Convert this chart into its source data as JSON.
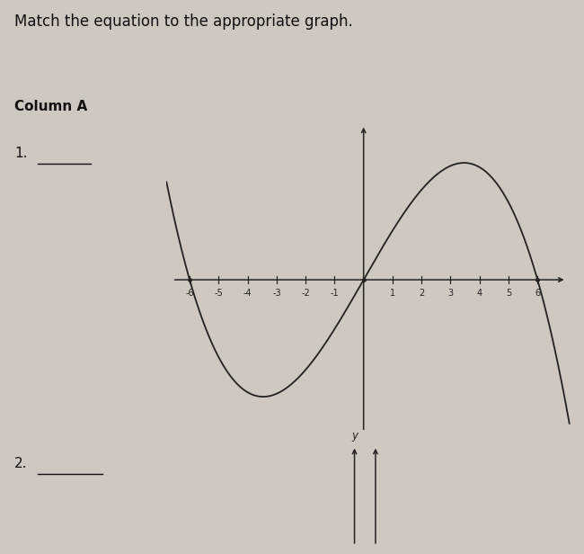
{
  "title": "Match the equation to the appropriate graph.",
  "column_label": "Column A",
  "item1_label": "1.",
  "item2_label": "2.",
  "bg_color": "#cdc9c0",
  "curve_color": "#222222",
  "axis_color": "#222222",
  "text_color": "#111111",
  "x_ticks_neg": [
    -6,
    -5,
    -4,
    -3,
    -2,
    -1
  ],
  "x_ticks_pos": [
    1,
    2,
    3,
    4,
    5,
    6
  ],
  "graph1_xlim": [
    -6.8,
    7.2
  ],
  "graph1_ylim": [
    -5.5,
    5.5
  ],
  "scale_factor": 0.049,
  "graph2_y_label": "y",
  "title_fontsize": 12,
  "label_fontsize": 11,
  "tick_fontsize": 7
}
